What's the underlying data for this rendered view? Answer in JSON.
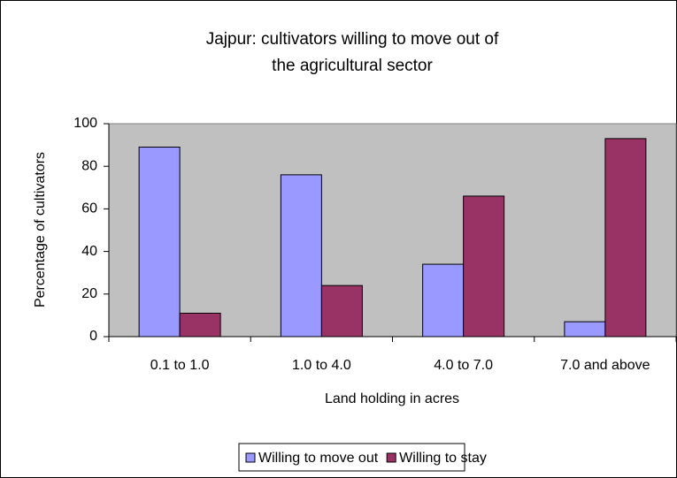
{
  "chart_data": {
    "type": "bar",
    "title": "Jajpur: cultivators willing to move out of the agricultural sector",
    "x_label": "Land holding in acres",
    "y_label": "Percentage of cultivators",
    "categories": [
      "0.1 to 1.0",
      "1.0 to 4.0",
      "4.0 to 7.0",
      "7.0 and above"
    ],
    "series": [
      {
        "name": "Willing to move out",
        "color": "#9999ff",
        "values": [
          89,
          76,
          34,
          7
        ]
      },
      {
        "name": "Willing to stay",
        "color": "#993366",
        "values": [
          11,
          24,
          66,
          93
        ]
      }
    ],
    "ylim": [
      0,
      100
    ],
    "yticks": [
      0,
      20,
      40,
      60,
      80,
      100
    ],
    "grid": false,
    "legend": "bottom"
  }
}
